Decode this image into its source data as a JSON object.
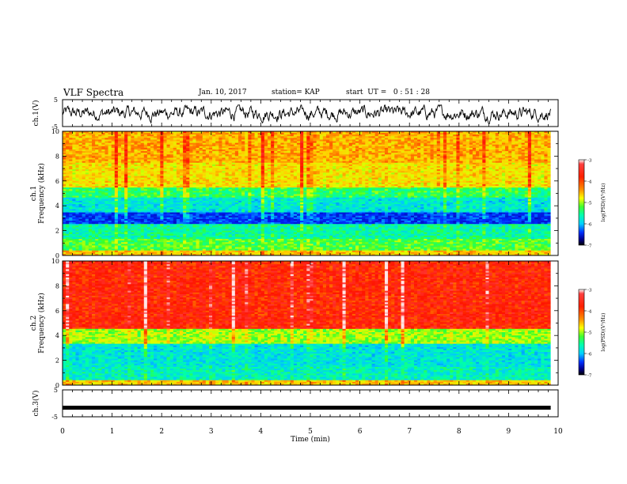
{
  "header": {
    "title": "VLF Spectra",
    "date": "Jan. 10, 2017",
    "station": "station= KAP",
    "start": "start  UT =   0 : 51 : 28"
  },
  "colorbar": {
    "label": "log(PSD)(V²/Hz)",
    "ticks": [
      "-3",
      "-4",
      "-5",
      "-6",
      "-7"
    ],
    "colors": [
      "#ffffff",
      "#ff0000",
      "#ffff00",
      "#00ff66",
      "#00ffff",
      "#0000ff",
      "#000000"
    ]
  },
  "chart_data": [
    {
      "type": "line",
      "panel": "ch1-waveform",
      "ylabel": "ch.1(V)",
      "ylim": [
        -5,
        5
      ],
      "yticks": [
        "5",
        "-5"
      ],
      "xlim": [
        0,
        10
      ],
      "series": [
        {
          "values_range": [
            -4,
            3
          ],
          "mean": 0
        }
      ]
    },
    {
      "type": "heatmap",
      "panel": "ch1-spectrogram",
      "ylabel": "ch.1\nFrequency (kHz)",
      "ylim": [
        0,
        10
      ],
      "yticks": [
        "0",
        "2",
        "4",
        "6",
        "8",
        "10"
      ],
      "xlim": [
        0,
        9.85
      ],
      "bands": [
        {
          "f0": 0,
          "f1": 0.4,
          "level": -4.3
        },
        {
          "f0": 0.4,
          "f1": 1.3,
          "level": -4.9
        },
        {
          "f0": 1.3,
          "f1": 2.6,
          "level": -5.2
        },
        {
          "f0": 2.6,
          "f1": 3.4,
          "level": -6.0
        },
        {
          "f0": 3.4,
          "f1": 4.7,
          "level": -5.4
        },
        {
          "f0": 4.7,
          "f1": 5.5,
          "level": -5.0
        },
        {
          "f0": 5.5,
          "f1": 7.5,
          "level": -4.4
        },
        {
          "f0": 7.5,
          "f1": 10,
          "level": -4.2
        }
      ]
    },
    {
      "type": "heatmap",
      "panel": "ch2-spectrogram",
      "ylabel": "ch.2\nFrequency (kHz)",
      "ylim": [
        0,
        10
      ],
      "yticks": [
        "0",
        "2",
        "4",
        "6",
        "8",
        "10"
      ],
      "xlim": [
        0,
        9.85
      ],
      "bands": [
        {
          "f0": 0,
          "f1": 0.4,
          "level": -4.3
        },
        {
          "f0": 0.4,
          "f1": 1.5,
          "level": -5.3
        },
        {
          "f0": 1.5,
          "f1": 3.3,
          "level": -5.4
        },
        {
          "f0": 3.3,
          "f1": 4.6,
          "level": -4.7
        },
        {
          "f0": 4.6,
          "f1": 10,
          "level": -3.6
        }
      ]
    },
    {
      "type": "line",
      "panel": "ch3-waveform",
      "ylabel": "ch.3(V)",
      "ylim": [
        -5,
        5
      ],
      "yticks": [
        "5",
        "-5"
      ],
      "xlim": [
        0,
        10
      ],
      "xlabel": "Time (min)",
      "xticks": [
        "0",
        "1",
        "2",
        "3",
        "4",
        "5",
        "6",
        "7",
        "8",
        "9",
        "10"
      ],
      "series": [
        {
          "constant": -1.6
        }
      ]
    }
  ]
}
